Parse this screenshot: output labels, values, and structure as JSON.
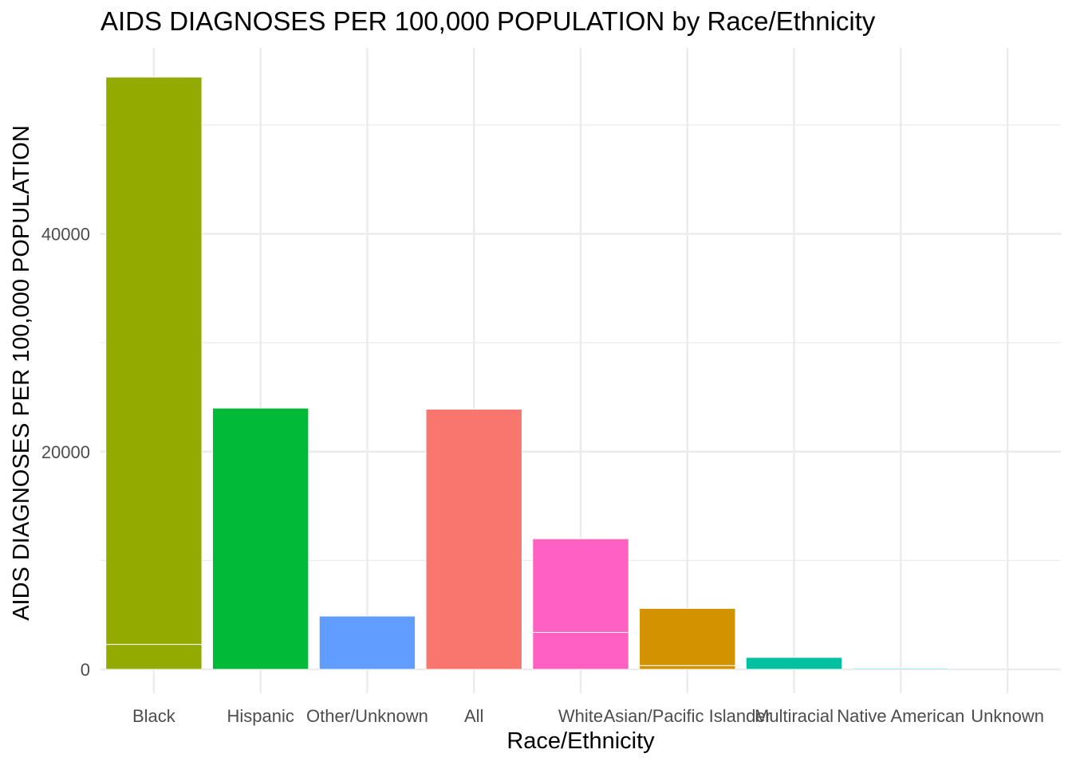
{
  "chart_data": {
    "type": "bar",
    "stacked": true,
    "title": "AIDS DIAGNOSES PER 100,000 POPULATION by Race/Ethnicity",
    "xlabel": "Race/Ethnicity",
    "ylabel": "AIDS DIAGNOSES PER 100,000 POPULATION",
    "ylim": [
      -2000,
      57000
    ],
    "yticks": [
      0,
      20000,
      40000
    ],
    "grid": true,
    "legend": "none",
    "categories": [
      "Black",
      "Hispanic",
      "Other/Unknown",
      "All",
      "White",
      "Asian/Pacific Islander",
      "Multiracial",
      "Native American",
      "Unknown"
    ],
    "colors": {
      "Black": "#93AA00",
      "Hispanic": "#00BA38",
      "Other/Unknown": "#619CFF",
      "All": "#F8766D",
      "White": "#FF61C3",
      "Asian/Pacific Islander": "#D39200",
      "Multiracial": "#00C19F",
      "Native American": "#00B9E3",
      "Unknown": "#DB72FB"
    },
    "segments": [
      [
        2300,
        52100
      ],
      [
        24000
      ],
      [
        4900
      ],
      [
        23900
      ],
      [
        3400,
        8600
      ],
      [
        350,
        5250
      ],
      [
        1100
      ],
      [
        100
      ],
      [
        0
      ]
    ],
    "values": [
      54400,
      24000,
      4900,
      23900,
      12000,
      5600,
      1100,
      100,
      0
    ]
  }
}
